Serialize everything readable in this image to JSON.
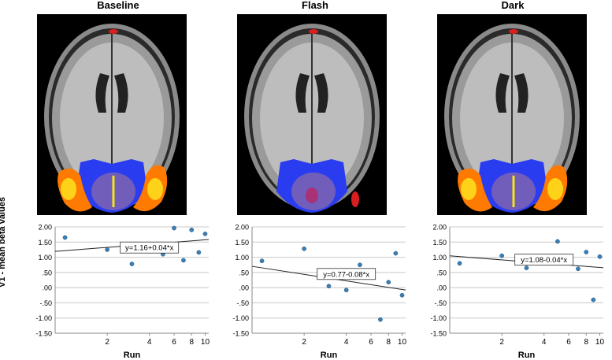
{
  "figure": {
    "ylabel": "V1 - mean beta values",
    "xlabel": "Run"
  },
  "colors": {
    "point": "#3b7fb5",
    "grid": "#c8c8c8",
    "line": "#222222",
    "v1_roi": "#2a3cf0",
    "activation": "#ff7a00",
    "mask": "#8a6aa8"
  },
  "panels": [
    {
      "title": "Baseline",
      "equation": "y=1.16+0.04*x"
    },
    {
      "title": "Flash",
      "equation": "y=0.77-0.08*x"
    },
    {
      "title": "Dark",
      "equation": "y=1.08-0.04*x"
    }
  ],
  "chart_data": [
    {
      "type": "scatter",
      "title": "Baseline",
      "xlabel": "Run",
      "ylabel": "V1 - mean beta values",
      "x_scale": "log",
      "x_ticks": [
        2,
        4,
        6,
        8,
        10
      ],
      "y_ticks": [
        "2.00",
        "1.50",
        "1.00",
        ".50",
        ".00",
        "-.50",
        "-1.00",
        "-1.50"
      ],
      "ylim": [
        -1.5,
        2.0
      ],
      "x": [
        1,
        2,
        3,
        4,
        5,
        6,
        7,
        8,
        9,
        10
      ],
      "y": [
        1.65,
        1.25,
        0.78,
        1.28,
        1.1,
        1.96,
        0.9,
        1.9,
        1.16,
        1.77
      ],
      "fit": {
        "intercept": 1.16,
        "slope": 0.04,
        "label": "y=1.16+0.04*x"
      }
    },
    {
      "type": "scatter",
      "title": "Flash",
      "xlabel": "Run",
      "ylabel": "",
      "x_scale": "log",
      "x_ticks": [
        2,
        4,
        6,
        8,
        10
      ],
      "y_ticks": [
        "2.00",
        "1.50",
        "1.00",
        ".50",
        ".00",
        "-.50",
        "-1.00",
        "-1.50"
      ],
      "ylim": [
        -1.5,
        2.0
      ],
      "x": [
        1,
        2,
        3,
        4,
        5,
        6,
        7,
        8,
        9,
        10
      ],
      "y": [
        0.88,
        1.28,
        0.05,
        -0.08,
        0.75,
        0.38,
        -1.05,
        0.18,
        1.13,
        -0.25
      ],
      "fit": {
        "intercept": 0.77,
        "slope": -0.08,
        "label": "y=0.77-0.08*x"
      }
    },
    {
      "type": "scatter",
      "title": "Dark",
      "xlabel": "Run",
      "ylabel": "",
      "x_scale": "log",
      "x_ticks": [
        2,
        4,
        6,
        8,
        10
      ],
      "y_ticks": [
        "2.00",
        "1.50",
        "1.00",
        ".50",
        ".00",
        "-.50",
        "-1.00",
        "-1.50"
      ],
      "ylim": [
        -1.5,
        2.0
      ],
      "x": [
        1,
        2,
        3,
        4,
        5,
        6,
        7,
        8,
        9,
        10
      ],
      "y": [
        0.8,
        1.05,
        0.65,
        0.98,
        1.52,
        0.98,
        0.62,
        1.17,
        -0.4,
        1.02
      ],
      "fit": {
        "intercept": 1.08,
        "slope": -0.04,
        "label": "y=1.08-0.04*x"
      }
    }
  ]
}
